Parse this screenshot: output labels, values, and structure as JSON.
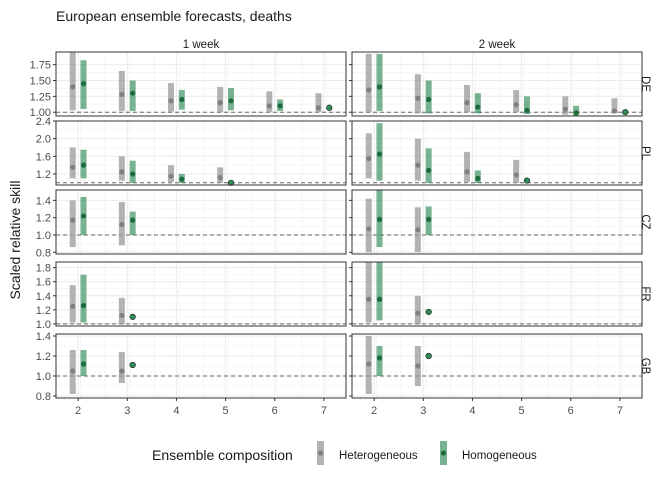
{
  "chart_data": {
    "type": "scatter",
    "title": "European ensemble forecasts, deaths",
    "xlabel": "",
    "ylabel": "Scaled relative skill",
    "x_ticks": [
      2,
      3,
      4,
      5,
      6,
      7
    ],
    "columns": [
      "1 week",
      "2 week"
    ],
    "rows": [
      "DE",
      "PL",
      "CZ",
      "FR",
      "GB"
    ],
    "reference_line": 1.0,
    "legend": {
      "title": "Ensemble composition",
      "position": "bottom",
      "entries": [
        "Heterogeneous",
        "Homogeneous"
      ]
    },
    "colors": {
      "Heterogeneous": "#999999",
      "Homogeneous": "#2e8b57",
      "panel_border": "#333333",
      "grid_major": "#ebebeb",
      "grid_minor": "#f5f5f5",
      "reference_line": "#666666"
    },
    "panels": [
      {
        "row": "DE",
        "column": "1 week",
        "ylim": [
          0.94,
          1.95
        ],
        "yticks": [
          1.0,
          1.25,
          1.5,
          1.75
        ],
        "ytick_labels": [
          "1.00",
          "1.25",
          "1.50",
          "1.75"
        ],
        "series": [
          {
            "name": "Heterogeneous",
            "points": [
              {
                "x": 2,
                "y": 1.4,
                "low": 1.03,
                "high": 1.95
              },
              {
                "x": 3,
                "y": 1.28,
                "low": 1.02,
                "high": 1.65
              },
              {
                "x": 4,
                "y": 1.18,
                "low": 1.01,
                "high": 1.46
              },
              {
                "x": 5,
                "y": 1.15,
                "low": 1.0,
                "high": 1.4
              },
              {
                "x": 6,
                "y": 1.1,
                "low": 1.0,
                "high": 1.33
              },
              {
                "x": 7,
                "y": 1.07,
                "low": 1.0,
                "high": 1.3
              }
            ]
          },
          {
            "name": "Homogeneous",
            "points": [
              {
                "x": 2,
                "y": 1.45,
                "low": 1.05,
                "high": 1.82
              },
              {
                "x": 3,
                "y": 1.3,
                "low": 1.02,
                "high": 1.5
              },
              {
                "x": 4,
                "y": 1.2,
                "low": 1.04,
                "high": 1.35
              },
              {
                "x": 5,
                "y": 1.18,
                "low": 1.03,
                "high": 1.38
              },
              {
                "x": 6,
                "y": 1.1,
                "low": 1.02,
                "high": 1.2
              },
              {
                "x": 7,
                "y": 1.07
              }
            ]
          }
        ]
      },
      {
        "row": "DE",
        "column": "2 week",
        "ylim": [
          0.94,
          1.95
        ],
        "yticks": [
          1.0,
          1.25,
          1.5,
          1.75
        ],
        "ytick_labels": [
          "1.00",
          "1.25",
          "1.50",
          "1.75"
        ],
        "series": [
          {
            "name": "Heterogeneous",
            "points": [
              {
                "x": 2,
                "y": 1.35,
                "low": 1.0,
                "high": 1.92
              },
              {
                "x": 3,
                "y": 1.22,
                "low": 0.98,
                "high": 1.6
              },
              {
                "x": 4,
                "y": 1.15,
                "low": 1.0,
                "high": 1.43
              },
              {
                "x": 5,
                "y": 1.12,
                "low": 1.0,
                "high": 1.35
              },
              {
                "x": 6,
                "y": 1.05,
                "low": 0.96,
                "high": 1.25
              },
              {
                "x": 7,
                "y": 1.02,
                "low": 0.98,
                "high": 1.22
              }
            ]
          },
          {
            "name": "Homogeneous",
            "points": [
              {
                "x": 2,
                "y": 1.4,
                "low": 1.02,
                "high": 1.92
              },
              {
                "x": 3,
                "y": 1.2,
                "low": 0.98,
                "high": 1.5
              },
              {
                "x": 4,
                "y": 1.08,
                "low": 0.98,
                "high": 1.3
              },
              {
                "x": 5,
                "y": 1.03,
                "low": 0.97,
                "high": 1.25
              },
              {
                "x": 6,
                "y": 0.99,
                "low": 0.95,
                "high": 1.1
              },
              {
                "x": 7,
                "y": 1.0
              }
            ]
          }
        ]
      },
      {
        "row": "PL",
        "column": "1 week",
        "ylim": [
          0.95,
          2.4
        ],
        "yticks": [
          1.2,
          1.6,
          2.0,
          2.4
        ],
        "ytick_labels": [
          "1.2",
          "1.6",
          "2.0",
          "2.4"
        ],
        "series": [
          {
            "name": "Heterogeneous",
            "points": [
              {
                "x": 2,
                "y": 1.35,
                "low": 1.1,
                "high": 1.8
              },
              {
                "x": 3,
                "y": 1.25,
                "low": 1.05,
                "high": 1.6
              },
              {
                "x": 4,
                "y": 1.15,
                "low": 1.02,
                "high": 1.4
              },
              {
                "x": 5,
                "y": 1.12,
                "low": 1.0,
                "high": 1.35
              }
            ]
          },
          {
            "name": "Homogeneous",
            "points": [
              {
                "x": 2,
                "y": 1.4,
                "low": 1.1,
                "high": 1.75
              },
              {
                "x": 3,
                "y": 1.2,
                "low": 1.0,
                "high": 1.5
              },
              {
                "x": 4,
                "y": 1.08,
                "low": 1.0,
                "high": 1.2
              },
              {
                "x": 5,
                "y": 1.0
              }
            ]
          }
        ]
      },
      {
        "row": "PL",
        "column": "2 week",
        "ylim": [
          0.95,
          2.4
        ],
        "yticks": [
          1.2,
          1.6,
          2.0,
          2.4
        ],
        "ytick_labels": [
          "1.2",
          "1.6",
          "2.0",
          "2.4"
        ],
        "series": [
          {
            "name": "Heterogeneous",
            "points": [
              {
                "x": 2,
                "y": 1.55,
                "low": 1.1,
                "high": 2.12
              },
              {
                "x": 3,
                "y": 1.4,
                "low": 1.05,
                "high": 2.0
              },
              {
                "x": 4,
                "y": 1.25,
                "low": 1.02,
                "high": 1.7
              },
              {
                "x": 5,
                "y": 1.18,
                "low": 1.0,
                "high": 1.52
              }
            ]
          },
          {
            "name": "Homogeneous",
            "points": [
              {
                "x": 2,
                "y": 1.65,
                "low": 1.05,
                "high": 2.35
              },
              {
                "x": 3,
                "y": 1.28,
                "low": 1.0,
                "high": 1.78
              },
              {
                "x": 4,
                "y": 1.1,
                "low": 1.0,
                "high": 1.28
              },
              {
                "x": 5,
                "y": 1.05
              }
            ]
          }
        ]
      },
      {
        "row": "CZ",
        "column": "1 week",
        "ylim": [
          0.78,
          1.52
        ],
        "yticks": [
          0.8,
          1.0,
          1.2,
          1.4
        ],
        "ytick_labels": [
          "0.8",
          "1.0",
          "1.2",
          "1.4"
        ],
        "series": [
          {
            "name": "Heterogeneous",
            "points": [
              {
                "x": 2,
                "y": 1.17,
                "low": 0.86,
                "high": 1.4
              },
              {
                "x": 3,
                "y": 1.12,
                "low": 0.88,
                "high": 1.38
              }
            ]
          },
          {
            "name": "Homogeneous",
            "points": [
              {
                "x": 2,
                "y": 1.22,
                "low": 1.0,
                "high": 1.44
              },
              {
                "x": 3,
                "y": 1.17,
                "low": 1.0,
                "high": 1.27
              }
            ]
          }
        ]
      },
      {
        "row": "CZ",
        "column": "2 week",
        "ylim": [
          0.78,
          1.52
        ],
        "yticks": [
          0.8,
          1.0,
          1.2,
          1.4
        ],
        "ytick_labels": [
          "0.8",
          "1.0",
          "1.2",
          "1.4"
        ],
        "series": [
          {
            "name": "Heterogeneous",
            "points": [
              {
                "x": 2,
                "y": 1.07,
                "low": 0.8,
                "high": 1.42
              },
              {
                "x": 3,
                "y": 1.06,
                "low": 0.8,
                "high": 1.32
              }
            ]
          },
          {
            "name": "Homogeneous",
            "points": [
              {
                "x": 2,
                "y": 1.18,
                "low": 0.86,
                "high": 1.52
              },
              {
                "x": 3,
                "y": 1.18,
                "low": 1.0,
                "high": 1.33
              }
            ]
          }
        ]
      },
      {
        "row": "FR",
        "column": "1 week",
        "ylim": [
          0.97,
          1.88
        ],
        "yticks": [
          1.0,
          1.2,
          1.4,
          1.6,
          1.8
        ],
        "ytick_labels": [
          "1.0",
          "1.2",
          "1.4",
          "1.6",
          "1.8"
        ],
        "series": [
          {
            "name": "Heterogeneous",
            "points": [
              {
                "x": 2,
                "y": 1.25,
                "low": 1.02,
                "high": 1.55
              },
              {
                "x": 3,
                "y": 1.12,
                "low": 1.0,
                "high": 1.37
              }
            ]
          },
          {
            "name": "Homogeneous",
            "points": [
              {
                "x": 2,
                "y": 1.26,
                "low": 1.02,
                "high": 1.7
              },
              {
                "x": 3,
                "y": 1.1
              }
            ]
          }
        ]
      },
      {
        "row": "FR",
        "column": "2 week",
        "ylim": [
          0.97,
          1.88
        ],
        "yticks": [
          1.0,
          1.2,
          1.4,
          1.6,
          1.8
        ],
        "ytick_labels": [
          "1.0",
          "1.2",
          "1.4",
          "1.6",
          "1.8"
        ],
        "series": [
          {
            "name": "Heterogeneous",
            "points": [
              {
                "x": 2,
                "y": 1.35,
                "low": 1.02,
                "high": 1.88
              },
              {
                "x": 3,
                "y": 1.15,
                "low": 1.0,
                "high": 1.4
              }
            ]
          },
          {
            "name": "Homogeneous",
            "points": [
              {
                "x": 2,
                "y": 1.35,
                "low": 1.05,
                "high": 1.88
              },
              {
                "x": 3,
                "y": 1.17
              }
            ]
          }
        ]
      },
      {
        "row": "GB",
        "column": "1 week",
        "ylim": [
          0.78,
          1.42
        ],
        "yticks": [
          0.8,
          1.0,
          1.2,
          1.4
        ],
        "ytick_labels": [
          "0.8",
          "1.0",
          "1.2",
          "1.4"
        ],
        "series": [
          {
            "name": "Heterogeneous",
            "points": [
              {
                "x": 2,
                "y": 1.05,
                "low": 0.82,
                "high": 1.26
              },
              {
                "x": 3,
                "y": 1.05,
                "low": 0.93,
                "high": 1.24
              }
            ]
          },
          {
            "name": "Homogeneous",
            "points": [
              {
                "x": 2,
                "y": 1.12,
                "low": 1.0,
                "high": 1.26
              },
              {
                "x": 3,
                "y": 1.11
              }
            ]
          }
        ]
      },
      {
        "row": "GB",
        "column": "2 week",
        "ylim": [
          0.78,
          1.42
        ],
        "yticks": [
          0.8,
          1.0,
          1.2,
          1.4
        ],
        "ytick_labels": [
          "0.8",
          "1.0",
          "1.2",
          "1.4"
        ],
        "series": [
          {
            "name": "Heterogeneous",
            "points": [
              {
                "x": 2,
                "y": 1.12,
                "low": 0.82,
                "high": 1.4
              },
              {
                "x": 3,
                "y": 1.1,
                "low": 0.9,
                "high": 1.3
              }
            ]
          },
          {
            "name": "Homogeneous",
            "points": [
              {
                "x": 2,
                "y": 1.18,
                "low": 1.0,
                "high": 1.3
              },
              {
                "x": 3,
                "y": 1.2
              }
            ]
          }
        ]
      }
    ]
  }
}
